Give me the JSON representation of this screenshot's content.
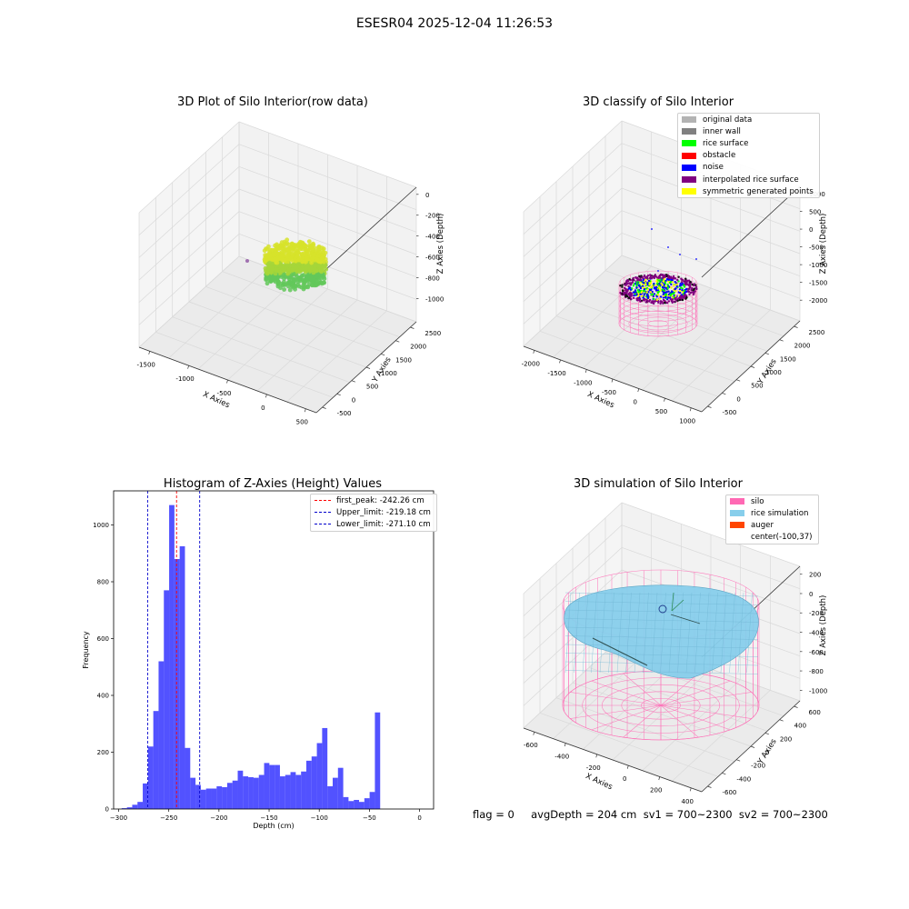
{
  "suptitle": "ESESR04 2025-12-04 11:26:53",
  "footer": {
    "text": "flag = 0     avgDepth = 204 cm  sv1 = 700~2300  sv2 = 700~2300"
  },
  "chart_data": [
    {
      "type": "scatter3d",
      "title": "3D Plot of Silo Interior(row data)",
      "xlabel": "X Axies",
      "ylabel": "Y Axies",
      "zlabel": "Z Axies (Depth)",
      "xticks": [
        "-1500",
        "-1000",
        "-500",
        "0",
        "500"
      ],
      "yticks": [
        "-500",
        "0",
        "500",
        "1000",
        "1500",
        "2000",
        "2500"
      ],
      "zticks": [
        "0",
        "-200",
        "-400",
        "-600",
        "-800",
        "-1000"
      ],
      "xlim": [
        -1800,
        500
      ],
      "ylim": [
        -500,
        2700
      ],
      "zlim": [
        -1000,
        0
      ],
      "colormap": [
        "#5ec962",
        "#fde725"
      ],
      "description_values": {
        "point_cloud_depth_range": [
          -900,
          -650
        ]
      }
    },
    {
      "type": "scatter3d",
      "title": "3D classify of Silo Interior",
      "xlabel": "X Axies",
      "ylabel": "Y Axies",
      "zlabel": "Z Axies (Depth)",
      "xticks": [
        "-2000",
        "-1500",
        "-1000",
        "-500",
        "0",
        "500",
        "1000"
      ],
      "yticks": [
        "-500",
        "0",
        "500",
        "1000",
        "1500",
        "2000",
        "2500"
      ],
      "zticks": [
        "1000",
        "500",
        "0",
        "-500",
        "-1000",
        "-1500",
        "-2000"
      ],
      "legend": [
        {
          "label": "original data",
          "color": "#b3b3b3"
        },
        {
          "label": "inner wall",
          "color": "#808080"
        },
        {
          "label": "rice surface",
          "color": "#00ff00"
        },
        {
          "label": "obstacle",
          "color": "#ff0000"
        },
        {
          "label": "noise",
          "color": "#0000ff"
        },
        {
          "label": "interpolated rice surface",
          "color": "#800080"
        },
        {
          "label": "symmetric generated points",
          "color": "#ffff00"
        }
      ],
      "wire_color": "#ff69b4"
    },
    {
      "type": "bar",
      "title": "Histogram of Z-Axies (Height) Values",
      "xlabel": "Depth (cm)",
      "ylabel": "Frequency",
      "xlim": [
        -300,
        0
      ],
      "ylim": [
        0,
        1100
      ],
      "xticks": [
        -300,
        -250,
        -200,
        -150,
        -100,
        -50,
        0
      ],
      "yticks": [
        0,
        200,
        400,
        600,
        800,
        1000
      ],
      "bar_color": "#0000ff",
      "bin_start": -297,
      "bin_width": 5.26,
      "values": [
        3,
        6,
        15,
        25,
        90,
        220,
        345,
        520,
        770,
        1070,
        880,
        925,
        215,
        110,
        85,
        68,
        72,
        72,
        80,
        77,
        92,
        100,
        135,
        115,
        112,
        110,
        120,
        162,
        155,
        155,
        115,
        120,
        130,
        120,
        132,
        170,
        185,
        232,
        285,
        80,
        110,
        145,
        42,
        28,
        32,
        25,
        38,
        60,
        340
      ],
      "vlines": [
        {
          "label": "first_peak: -242.26 cm",
          "x": -242.26,
          "color": "#ff0000"
        },
        {
          "label": "Upper_limit: -219.18 cm",
          "x": -219.18,
          "color": "#0000cc"
        },
        {
          "label": "Lower_limit: -271.10 cm",
          "x": -271.1,
          "color": "#0000cc"
        }
      ]
    },
    {
      "type": "surface3d",
      "title": "3D simulation of Silo Interior",
      "xlabel": "X Axies",
      "ylabel": "Y Axies",
      "zlabel": "Z Axies (Depth)",
      "xticks": [
        "-600",
        "-400",
        "-200",
        "0",
        "200",
        "400"
      ],
      "yticks": [
        "-600",
        "-400",
        "-200",
        "0",
        "200",
        "400",
        "600"
      ],
      "zticks": [
        "200",
        "0",
        "-200",
        "-400",
        "-600",
        "-800",
        "-1000"
      ],
      "legend": [
        {
          "label": "silo",
          "color": "#ff69b4"
        },
        {
          "label": "rice simulation",
          "color": "#87ceeb"
        },
        {
          "label": "auger",
          "color": "#ff4500"
        },
        {
          "label": "center(-100,37)",
          "color": ""
        }
      ]
    }
  ]
}
